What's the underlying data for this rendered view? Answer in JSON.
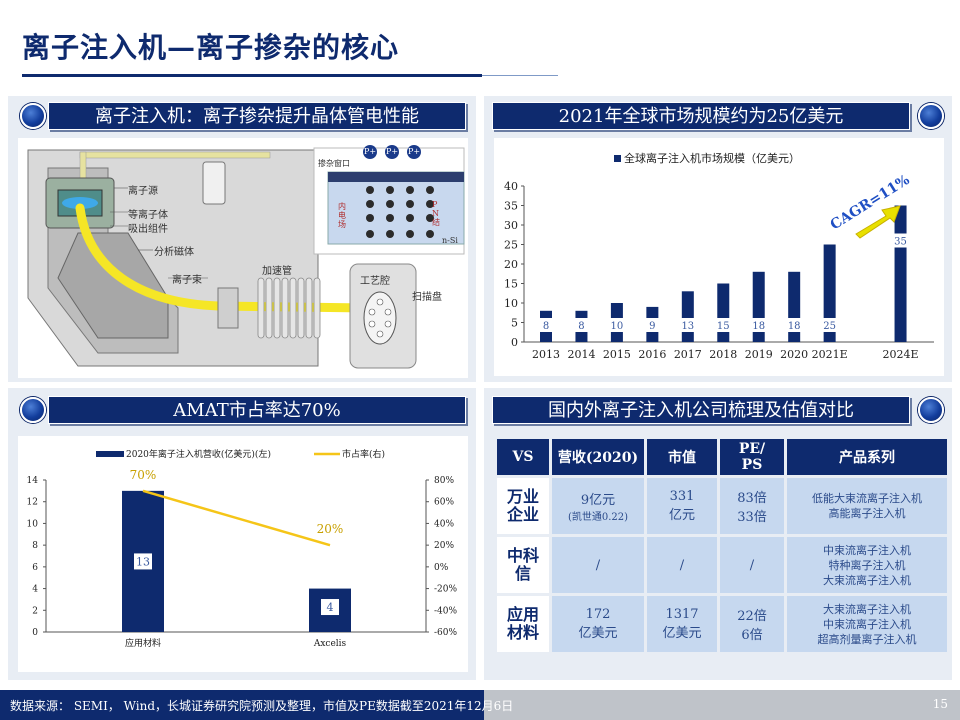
{
  "page_title": "离子注入机—离子掺杂的核心",
  "sections": {
    "tl": "离子注入机：离子掺杂提升晶体管电性能",
    "tr": "2021年全球市场规模约为25亿美元",
    "bl": "AMAT市占率达70%",
    "br": "国内外离子注入机公司梳理及估值对比"
  },
  "schematic": {
    "labels": {
      "ion_source": "离子源",
      "plasma": "等离子体",
      "extraction": "吸出组件",
      "analyzer": "分析磁体",
      "beam": "离子束",
      "accel": "加速管",
      "chamber": "工艺腔",
      "scan_disk": "扫描盘",
      "window": "掺杂窗口",
      "built_in": "内\n电\n场",
      "pn": "P\nN\n结",
      "nsi": "n-Si",
      "p_plus": "P+"
    }
  },
  "chart_data": [
    {
      "type": "bar",
      "title": "",
      "legend": [
        "全球离子注入机市场规模（亿美元）"
      ],
      "annotation": "CAGR=11%",
      "categories": [
        "2013",
        "2014",
        "2015",
        "2016",
        "2017",
        "2018",
        "2019",
        "2020",
        "2021E",
        "2024E"
      ],
      "values": [
        8,
        8,
        10,
        9,
        13,
        15,
        18,
        18,
        25,
        35
      ],
      "ylim": [
        0,
        40
      ],
      "yticks": [
        0,
        5,
        10,
        15,
        20,
        25,
        30,
        35,
        40
      ],
      "grid": false,
      "color": "#0e2a6e"
    },
    {
      "type": "bar+line",
      "title": "",
      "categories": [
        "应用材料",
        "Axcelis"
      ],
      "series": [
        {
          "name": "2020年离子注入机营收(亿美元)(左)",
          "type": "bar",
          "values": [
            13,
            4
          ],
          "axis": "left",
          "color": "#0e2a6e"
        },
        {
          "name": "市占率(右)",
          "type": "line",
          "values": [
            70,
            20
          ],
          "axis": "right",
          "color": "#f5c518",
          "labels": [
            "70%",
            "20%"
          ]
        }
      ],
      "ylim_left": [
        0,
        14
      ],
      "yticks_left": [
        0,
        2,
        4,
        6,
        8,
        10,
        12,
        14
      ],
      "ylim_right": [
        -60,
        80
      ],
      "yticks_right": [
        "-60%",
        "-40%",
        "-20%",
        "0%",
        "20%",
        "40%",
        "60%",
        "80%"
      ]
    }
  ],
  "table": {
    "headers": [
      "VS",
      "营收(2020)",
      "市值",
      "PE/\nPS",
      "产品系列"
    ],
    "rows": [
      {
        "company": "万业\n企业",
        "revenue": "9亿元",
        "revenue_note": "(凯世通0.22)",
        "mktcap": "331\n亿元",
        "pe": "83倍\n33倍",
        "products": "低能大束流离子注入机\n高能离子注入机"
      },
      {
        "company": "中科\n信",
        "revenue": "/",
        "revenue_note": "",
        "mktcap": "/",
        "pe": "/",
        "products": "中束流离子注入机\n特种离子注入机\n大束流离子注入机"
      },
      {
        "company": "应用\n材料",
        "revenue": "172\n亿美元",
        "revenue_note": "",
        "mktcap": "1317\n亿美元",
        "pe": "22倍\n6倍",
        "products": "大束流离子注入机\n中束流离子注入机\n超高剂量离子注入机"
      }
    ]
  },
  "footer": {
    "source": "数据来源： SEMI， Wind，长城证券研究院预测及整理，市值及PE数据截至2021年12月6日",
    "page": "15"
  }
}
